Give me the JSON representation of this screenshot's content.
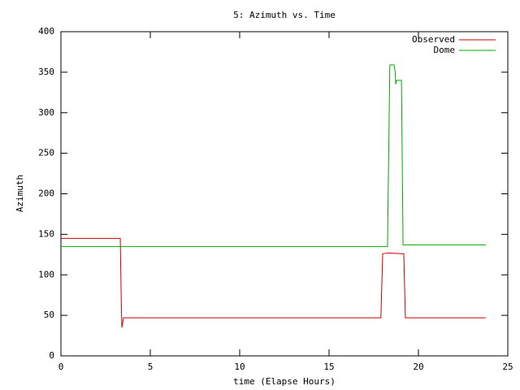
{
  "chart_data": {
    "type": "line",
    "title": "5: Azimuth vs. Time",
    "xlabel": "time (Elapse Hours)",
    "ylabel": "Azimuth",
    "xlim": [
      0,
      25
    ],
    "xticks": [
      0,
      5,
      10,
      15,
      20,
      25
    ],
    "ylim": [
      0,
      400
    ],
    "yticks": [
      0,
      50,
      100,
      150,
      200,
      250,
      300,
      350,
      400
    ],
    "legend": "top-right",
    "series": [
      {
        "name": "Observed",
        "color": "#cc0000",
        "x": [
          0,
          3.32,
          3.38,
          3.41,
          3.45,
          3.5,
          17.9,
          18.0,
          18.3,
          19.18,
          19.27,
          23.77
        ],
        "values": [
          145,
          145,
          60,
          35,
          40,
          47,
          47,
          126,
          127,
          126,
          47,
          47
        ]
      },
      {
        "name": "Dome",
        "color": "#00aa00",
        "x": [
          0,
          18.27,
          18.4,
          18.64,
          18.7,
          18.73,
          18.77,
          19.05,
          19.14,
          23.77
        ],
        "values": [
          135,
          135,
          359,
          359,
          350,
          335,
          340,
          340,
          137,
          137
        ]
      }
    ]
  }
}
